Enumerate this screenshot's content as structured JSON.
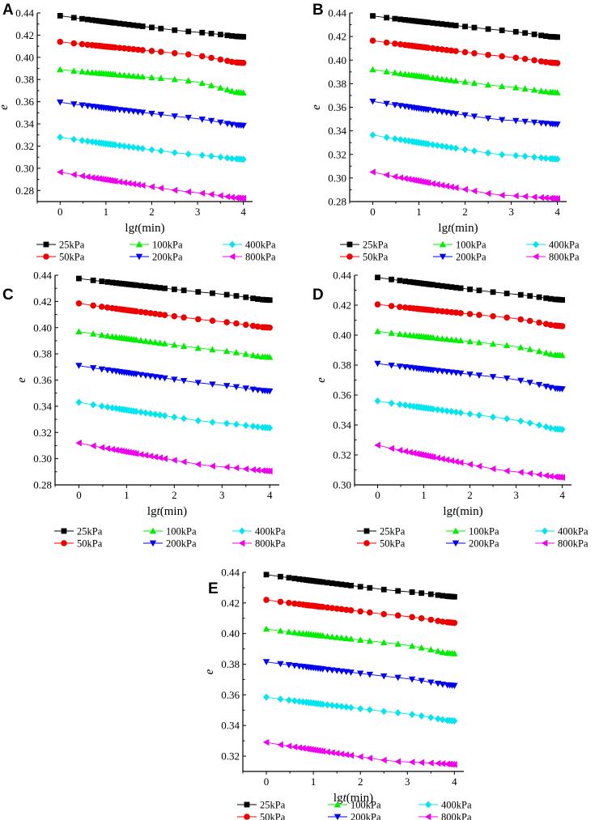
{
  "chart_data": [
    {
      "panel": "A",
      "type": "line",
      "xlabel_prefix": "lg",
      "xlabel_var": "t",
      "xlabel_unit": "(min)",
      "ylabel": "e",
      "xlim": [
        -0.5,
        4.2
      ],
      "ylim": [
        0.27,
        0.44
      ],
      "xticks": [
        "0",
        "1",
        "2",
        "3",
        "4"
      ],
      "yticks": [
        "0.28",
        "0.30",
        "0.32",
        "0.34",
        "0.36",
        "0.38",
        "0.40",
        "0.42",
        "0.44"
      ],
      "series": [
        {
          "name": "25kPa",
          "values": [
            0.4375,
            0.4235,
            0.419,
            0.4185
          ]
        },
        {
          "name": "50kPa",
          "values": [
            0.414,
            0.403,
            0.3955,
            0.395
          ]
        },
        {
          "name": "100kPa",
          "values": [
            0.389,
            0.3795,
            0.369,
            0.368
          ]
        },
        {
          "name": "200kPa",
          "values": [
            0.3595,
            0.346,
            0.339,
            0.3385
          ]
        },
        {
          "name": "400kPa",
          "values": [
            0.328,
            0.313,
            0.3085,
            0.308
          ]
        },
        {
          "name": "800kPa",
          "values": [
            0.2965,
            0.279,
            0.2735,
            0.273
          ]
        }
      ]
    },
    {
      "panel": "B",
      "type": "line",
      "xlabel_prefix": "lg",
      "xlabel_var": "t",
      "xlabel_unit": "(min)",
      "ylabel": "e",
      "xlim": [
        -0.5,
        4.2
      ],
      "ylim": [
        0.28,
        0.44
      ],
      "xticks": [
        "0",
        "1",
        "2",
        "3",
        "4"
      ],
      "yticks": [
        "0.28",
        "0.30",
        "0.32",
        "0.34",
        "0.36",
        "0.38",
        "0.40",
        "0.42",
        "0.44"
      ],
      "series": [
        {
          "name": "25kPa",
          "values": [
            0.4375,
            0.4255,
            0.42,
            0.4195
          ]
        },
        {
          "name": "50kPa",
          "values": [
            0.4165,
            0.4035,
            0.398,
            0.3975
          ]
        },
        {
          "name": "100kPa",
          "values": [
            0.392,
            0.378,
            0.373,
            0.3725
          ]
        },
        {
          "name": "200kPa",
          "values": [
            0.365,
            0.3495,
            0.346,
            0.3455
          ]
        },
        {
          "name": "400kPa",
          "values": [
            0.3365,
            0.32,
            0.3165,
            0.316
          ]
        },
        {
          "name": "800kPa",
          "values": [
            0.305,
            0.2855,
            0.283,
            0.2825
          ]
        }
      ]
    },
    {
      "panel": "C",
      "type": "line",
      "xlabel_prefix": "lg",
      "xlabel_var": "t",
      "xlabel_unit": "(min)",
      "ylabel": "e",
      "xlim": [
        -0.5,
        4.2
      ],
      "ylim": [
        0.28,
        0.44
      ],
      "xticks": [
        "0",
        "1",
        "2",
        "3",
        "4"
      ],
      "yticks": [
        "0.28",
        "0.30",
        "0.32",
        "0.34",
        "0.36",
        "0.38",
        "0.40",
        "0.42",
        "0.44"
      ],
      "series": [
        {
          "name": "25kPa",
          "values": [
            0.4375,
            0.4265,
            0.4215,
            0.421
          ]
        },
        {
          "name": "50kPa",
          "values": [
            0.4185,
            0.4055,
            0.4005,
            0.4
          ]
        },
        {
          "name": "100kPa",
          "values": [
            0.397,
            0.3835,
            0.378,
            0.3775
          ]
        },
        {
          "name": "200kPa",
          "values": [
            0.371,
            0.357,
            0.352,
            0.3515
          ]
        },
        {
          "name": "400kPa",
          "values": [
            0.343,
            0.328,
            0.324,
            0.3235
          ]
        },
        {
          "name": "800kPa",
          "values": [
            0.312,
            0.2945,
            0.291,
            0.2905
          ]
        }
      ]
    },
    {
      "panel": "D",
      "type": "line",
      "xlabel_prefix": "lg",
      "xlabel_var": "t",
      "xlabel_unit": "(min)",
      "ylabel": "e",
      "xlim": [
        -0.5,
        4.2
      ],
      "ylim": [
        0.3,
        0.44
      ],
      "xticks": [
        "0",
        "1",
        "2",
        "3",
        "4"
      ],
      "yticks": [
        "0.30",
        "0.32",
        "0.34",
        "0.36",
        "0.38",
        "0.40",
        "0.42",
        "0.44"
      ],
      "series": [
        {
          "name": "25kPa",
          "values": [
            0.4385,
            0.428,
            0.424,
            0.4235
          ]
        },
        {
          "name": "50kPa",
          "values": [
            0.4205,
            0.412,
            0.4065,
            0.406
          ]
        },
        {
          "name": "100kPa",
          "values": [
            0.4025,
            0.3935,
            0.387,
            0.3865
          ]
        },
        {
          "name": "200kPa",
          "values": [
            0.381,
            0.3715,
            0.3645,
            0.364
          ]
        },
        {
          "name": "400kPa",
          "values": [
            0.356,
            0.3445,
            0.3375,
            0.337
          ]
        },
        {
          "name": "800kPa",
          "values": [
            0.3265,
            0.3095,
            0.3055,
            0.305
          ]
        }
      ]
    },
    {
      "panel": "E",
      "type": "line",
      "xlabel_prefix": "lg",
      "xlabel_var": "t",
      "xlabel_unit": "(min)",
      "ylabel": "e",
      "xlim": [
        -0.5,
        4.2
      ],
      "ylim": [
        0.31,
        0.44
      ],
      "xticks": [
        "0",
        "1",
        "2",
        "3",
        "4"
      ],
      "yticks": [
        "0.32",
        "0.34",
        "0.36",
        "0.38",
        "0.40",
        "0.42",
        "0.44"
      ],
      "series": [
        {
          "name": "25kPa",
          "values": [
            0.4385,
            0.428,
            0.4245,
            0.424
          ]
        },
        {
          "name": "50kPa",
          "values": [
            0.422,
            0.412,
            0.4075,
            0.407
          ]
        },
        {
          "name": "100kPa",
          "values": [
            0.403,
            0.3935,
            0.3875,
            0.387
          ]
        },
        {
          "name": "200kPa",
          "values": [
            0.3815,
            0.3715,
            0.3665,
            0.366
          ]
        },
        {
          "name": "400kPa",
          "values": [
            0.3585,
            0.3485,
            0.3435,
            0.343
          ]
        },
        {
          "name": "800kPa",
          "values": [
            0.329,
            0.3165,
            0.315,
            0.3145
          ]
        }
      ]
    }
  ],
  "legend": [
    {
      "name": "25kPa",
      "color": "#000000",
      "marker": "square"
    },
    {
      "name": "100kPa",
      "color": "#00ee00",
      "marker": "triangle-up"
    },
    {
      "name": "400kPa",
      "color": "#00e5ee",
      "marker": "diamond"
    },
    {
      "name": "50kPa",
      "color": "#ee0000",
      "marker": "circle"
    },
    {
      "name": "200kPa",
      "color": "#0000ee",
      "marker": "triangle-down"
    },
    {
      "name": "800kPa",
      "color": "#ee00ee",
      "marker": "triangle-left"
    }
  ],
  "series_colors": [
    "#000000",
    "#ee0000",
    "#00ee00",
    "#0000ee",
    "#00e5ee",
    "#ee00ee"
  ],
  "series_markers": [
    "square",
    "circle",
    "triangle-up",
    "triangle-down",
    "diamond",
    "triangle-left"
  ]
}
